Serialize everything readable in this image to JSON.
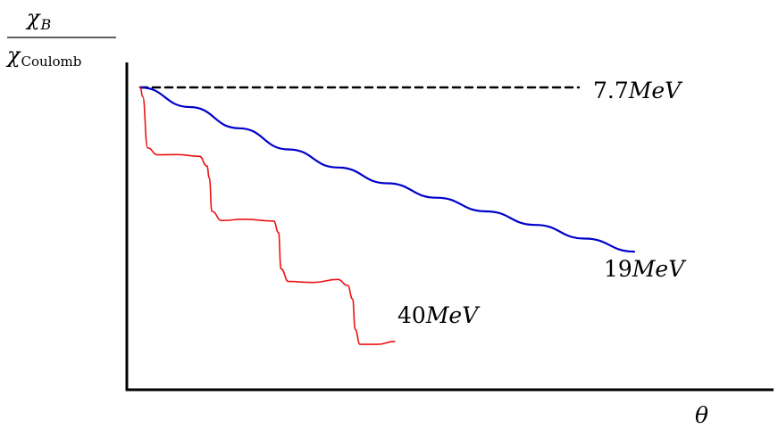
{
  "chart_data": {
    "type": "line",
    "ylabel": {
      "numerator": "χ",
      "numerator_sub": "B",
      "denominator": "χ",
      "denominator_sub": "Coulomb"
    },
    "xlabel": "θ",
    "grid": false,
    "legend": "none",
    "series": [
      {
        "name": "7.7MeV",
        "label_number": "7.7",
        "label_unit": "MeV",
        "color": "#000000",
        "style": "dashed",
        "points": [
          [
            0.0,
            1.0
          ],
          [
            1.0,
            1.0
          ]
        ]
      },
      {
        "name": "19MeV",
        "label_number": "19",
        "label_unit": "MeV",
        "color": "#0000cc",
        "style": "solid",
        "points": [
          [
            0.0,
            1.0
          ],
          [
            0.1,
            0.935
          ],
          [
            0.2,
            0.865
          ],
          [
            0.3,
            0.795
          ],
          [
            0.4,
            0.735
          ],
          [
            0.5,
            0.683
          ],
          [
            0.6,
            0.635
          ],
          [
            0.7,
            0.59
          ],
          [
            0.8,
            0.545
          ],
          [
            0.9,
            0.5
          ],
          [
            1.0,
            0.457
          ]
        ]
      },
      {
        "name": "40MeV",
        "label_number": "40",
        "label_unit": "MeV",
        "color": "#ee1111",
        "style": "solid",
        "points": [
          [
            0.0,
            1.0
          ],
          [
            0.005,
            0.97
          ],
          [
            0.015,
            0.8
          ],
          [
            0.035,
            0.777
          ],
          [
            0.075,
            0.778
          ],
          [
            0.12,
            0.772
          ],
          [
            0.135,
            0.74
          ],
          [
            0.14,
            0.7
          ],
          [
            0.145,
            0.59
          ],
          [
            0.165,
            0.56
          ],
          [
            0.21,
            0.564
          ],
          [
            0.27,
            0.558
          ],
          [
            0.28,
            0.52
          ],
          [
            0.285,
            0.4
          ],
          [
            0.3,
            0.358
          ],
          [
            0.35,
            0.355
          ],
          [
            0.4,
            0.365
          ],
          [
            0.42,
            0.345
          ],
          [
            0.43,
            0.3
          ],
          [
            0.435,
            0.2
          ],
          [
            0.445,
            0.15
          ],
          [
            0.48,
            0.15
          ],
          [
            0.515,
            0.16
          ]
        ]
      }
    ]
  }
}
